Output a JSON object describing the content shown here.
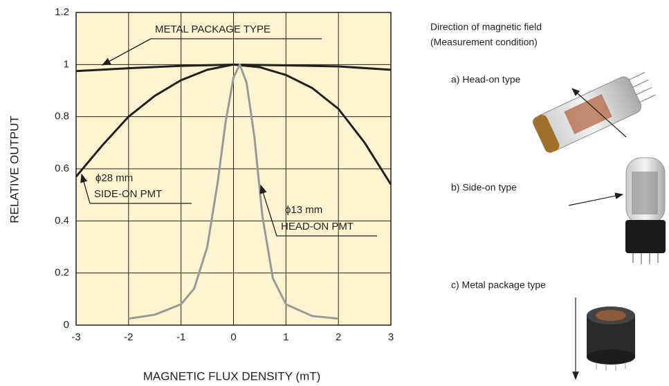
{
  "chart_data": {
    "type": "line",
    "x_label": "MAGNETIC FLUX DENSITY (mT)",
    "y_label": "RELATIVE OUTPUT",
    "xlim": [
      -3,
      3
    ],
    "ylim": [
      0,
      1.2
    ],
    "xticks": [
      -3,
      -2,
      -1,
      0,
      1,
      2,
      3
    ],
    "yticks": [
      0,
      0.2,
      0.4,
      0.6,
      0.8,
      1,
      1.2
    ],
    "grid": true,
    "background": "#fdf5d2",
    "series": [
      {
        "name": "METAL PACKAGE TYPE",
        "color": "#231f20",
        "x": [
          -3,
          -2,
          -1,
          0,
          1,
          2,
          3
        ],
        "values": [
          0.975,
          0.986,
          0.995,
          1.0,
          0.997,
          0.993,
          0.98
        ]
      },
      {
        "name": "SIDE-ON PMT",
        "color": "#231f20",
        "x": [
          -3,
          -2.5,
          -2,
          -1.5,
          -1,
          -0.5,
          0,
          0.5,
          1,
          1.5,
          2,
          2.5,
          3
        ],
        "values": [
          0.57,
          0.69,
          0.8,
          0.88,
          0.94,
          0.98,
          1.0,
          0.99,
          0.96,
          0.91,
          0.83,
          0.7,
          0.54
        ]
      },
      {
        "name": "HEAD-ON PMT",
        "color": "#9a9a9a",
        "x": [
          -2,
          -1.5,
          -1,
          -0.75,
          -0.5,
          -0.3,
          -0.15,
          0,
          0.12,
          0.25,
          0.4,
          0.55,
          0.75,
          1,
          1.5,
          2
        ],
        "values": [
          0.025,
          0.04,
          0.08,
          0.14,
          0.3,
          0.55,
          0.78,
          0.95,
          1.0,
          0.93,
          0.72,
          0.42,
          0.18,
          0.08,
          0.035,
          0.025
        ]
      }
    ],
    "annotations": [
      "METAL PACKAGE TYPE",
      "ϕ28 mm",
      "SIDE-ON PMT",
      "ϕ13 mm",
      "HEAD-ON PMT"
    ]
  },
  "panel": {
    "heading": [
      "Direction of magnetic field",
      "(Measurement condition)"
    ],
    "items": [
      "a) Head-on type",
      "b) Side-on type",
      "c) Metal package type"
    ]
  }
}
